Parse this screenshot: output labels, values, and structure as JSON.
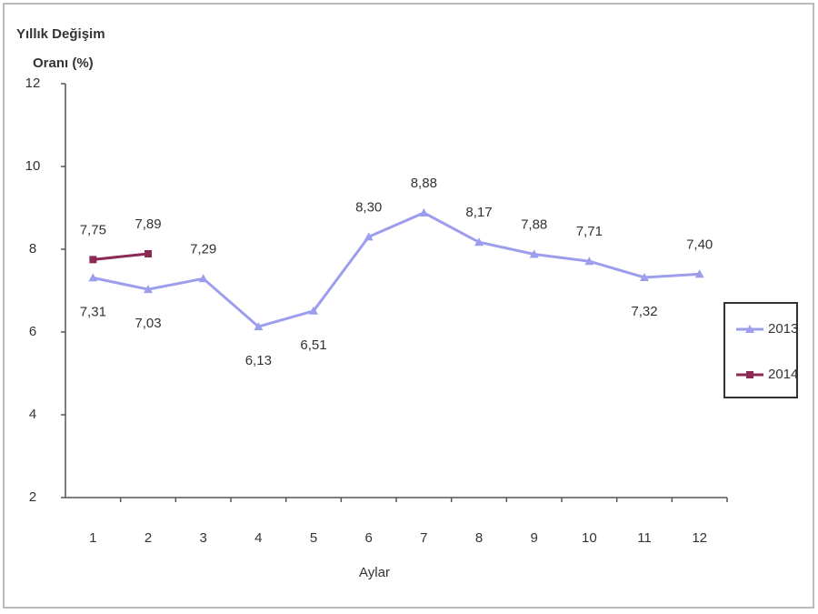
{
  "chart_data": {
    "type": "line",
    "ylabel": [
      "Yıllık Değişim",
      "Oranı (%)"
    ],
    "xlabel": "Aylar",
    "categories": [
      "1",
      "2",
      "3",
      "4",
      "5",
      "6",
      "7",
      "8",
      "9",
      "10",
      "11",
      "12"
    ],
    "series": [
      {
        "name": "2013",
        "color": "#9d9ded",
        "marker": "triangle",
        "values": [
          7.31,
          7.03,
          7.29,
          6.13,
          6.51,
          8.3,
          8.88,
          8.17,
          7.88,
          7.71,
          7.32,
          7.4
        ],
        "value_labels": [
          "7,31",
          "7,03",
          "7,29",
          "6,13",
          "6,51",
          "8,30",
          "8,88",
          "8,17",
          "7,88",
          "7,71",
          "7,32",
          "7,40"
        ]
      },
      {
        "name": "2014",
        "color": "#8b2a55",
        "marker": "square",
        "values": [
          7.75,
          7.89,
          null,
          null,
          null,
          null,
          null,
          null,
          null,
          null,
          null,
          null
        ],
        "value_labels": [
          "7,75",
          "7,89",
          null,
          null,
          null,
          null,
          null,
          null,
          null,
          null,
          null,
          null
        ]
      }
    ],
    "ylim": [
      2,
      12
    ],
    "yticks": [
      2,
      4,
      6,
      8,
      10,
      12
    ],
    "grid": false,
    "legend": "right"
  }
}
